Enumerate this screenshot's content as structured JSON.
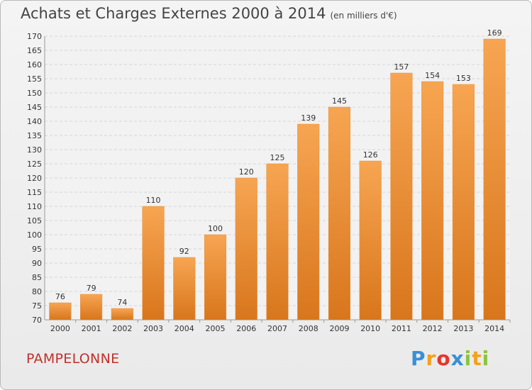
{
  "chart_data": {
    "type": "bar",
    "title": "Achats et Charges Externes 2000 à 2014",
    "subtitle": "(en milliers d'€)",
    "categories": [
      "2000",
      "2001",
      "2002",
      "2003",
      "2004",
      "2005",
      "2006",
      "2007",
      "2008",
      "2009",
      "2010",
      "2011",
      "2012",
      "2013",
      "2014"
    ],
    "values": [
      76,
      79,
      74,
      110,
      92,
      100,
      120,
      125,
      139,
      145,
      126,
      157,
      154,
      153,
      169
    ],
    "ylim": [
      70,
      170
    ],
    "ytick_step": 5,
    "grid": true,
    "bar_color_top": "#f7a552",
    "bar_color_bottom": "#d8761c"
  },
  "place_name": "PAMPELONNE",
  "brand": {
    "letters": [
      "P",
      "r",
      "o",
      "x",
      "i",
      "t",
      "i"
    ],
    "colors": [
      "#3b8fd6",
      "#f2a21c",
      "#e5352b",
      "#3b8fd6",
      "#8bc43f",
      "#f2a21c",
      "#8bc43f"
    ]
  }
}
